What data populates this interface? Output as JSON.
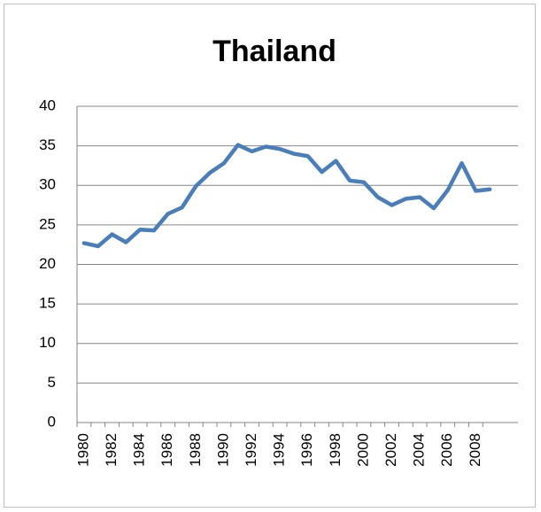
{
  "chart_data": {
    "type": "line",
    "title": "Thailand",
    "categories": [
      "1980",
      null,
      "1982",
      null,
      "1984",
      null,
      "1986",
      null,
      "1988",
      null,
      "1990",
      null,
      "1992",
      null,
      "1994",
      null,
      "1996",
      null,
      "1998",
      null,
      "2000",
      null,
      "2002",
      null,
      "2004",
      null,
      "2006",
      null,
      "2008",
      null
    ],
    "values": [
      22.7,
      22.3,
      23.8,
      22.8,
      24.4,
      24.3,
      26.4,
      27.2,
      29.9,
      31.6,
      32.8,
      35.1,
      34.3,
      34.9,
      34.6,
      34.0,
      33.7,
      31.7,
      33.1,
      30.6,
      30.4,
      28.5,
      27.5,
      28.3,
      28.5,
      27.1,
      29.4,
      32.8,
      29.3,
      29.5
    ],
    "color": "#4a7ebb",
    "ylim": [
      0,
      40
    ],
    "yticks": [
      0,
      5,
      10,
      15,
      20,
      25,
      30,
      35,
      40
    ],
    "grid": true
  }
}
